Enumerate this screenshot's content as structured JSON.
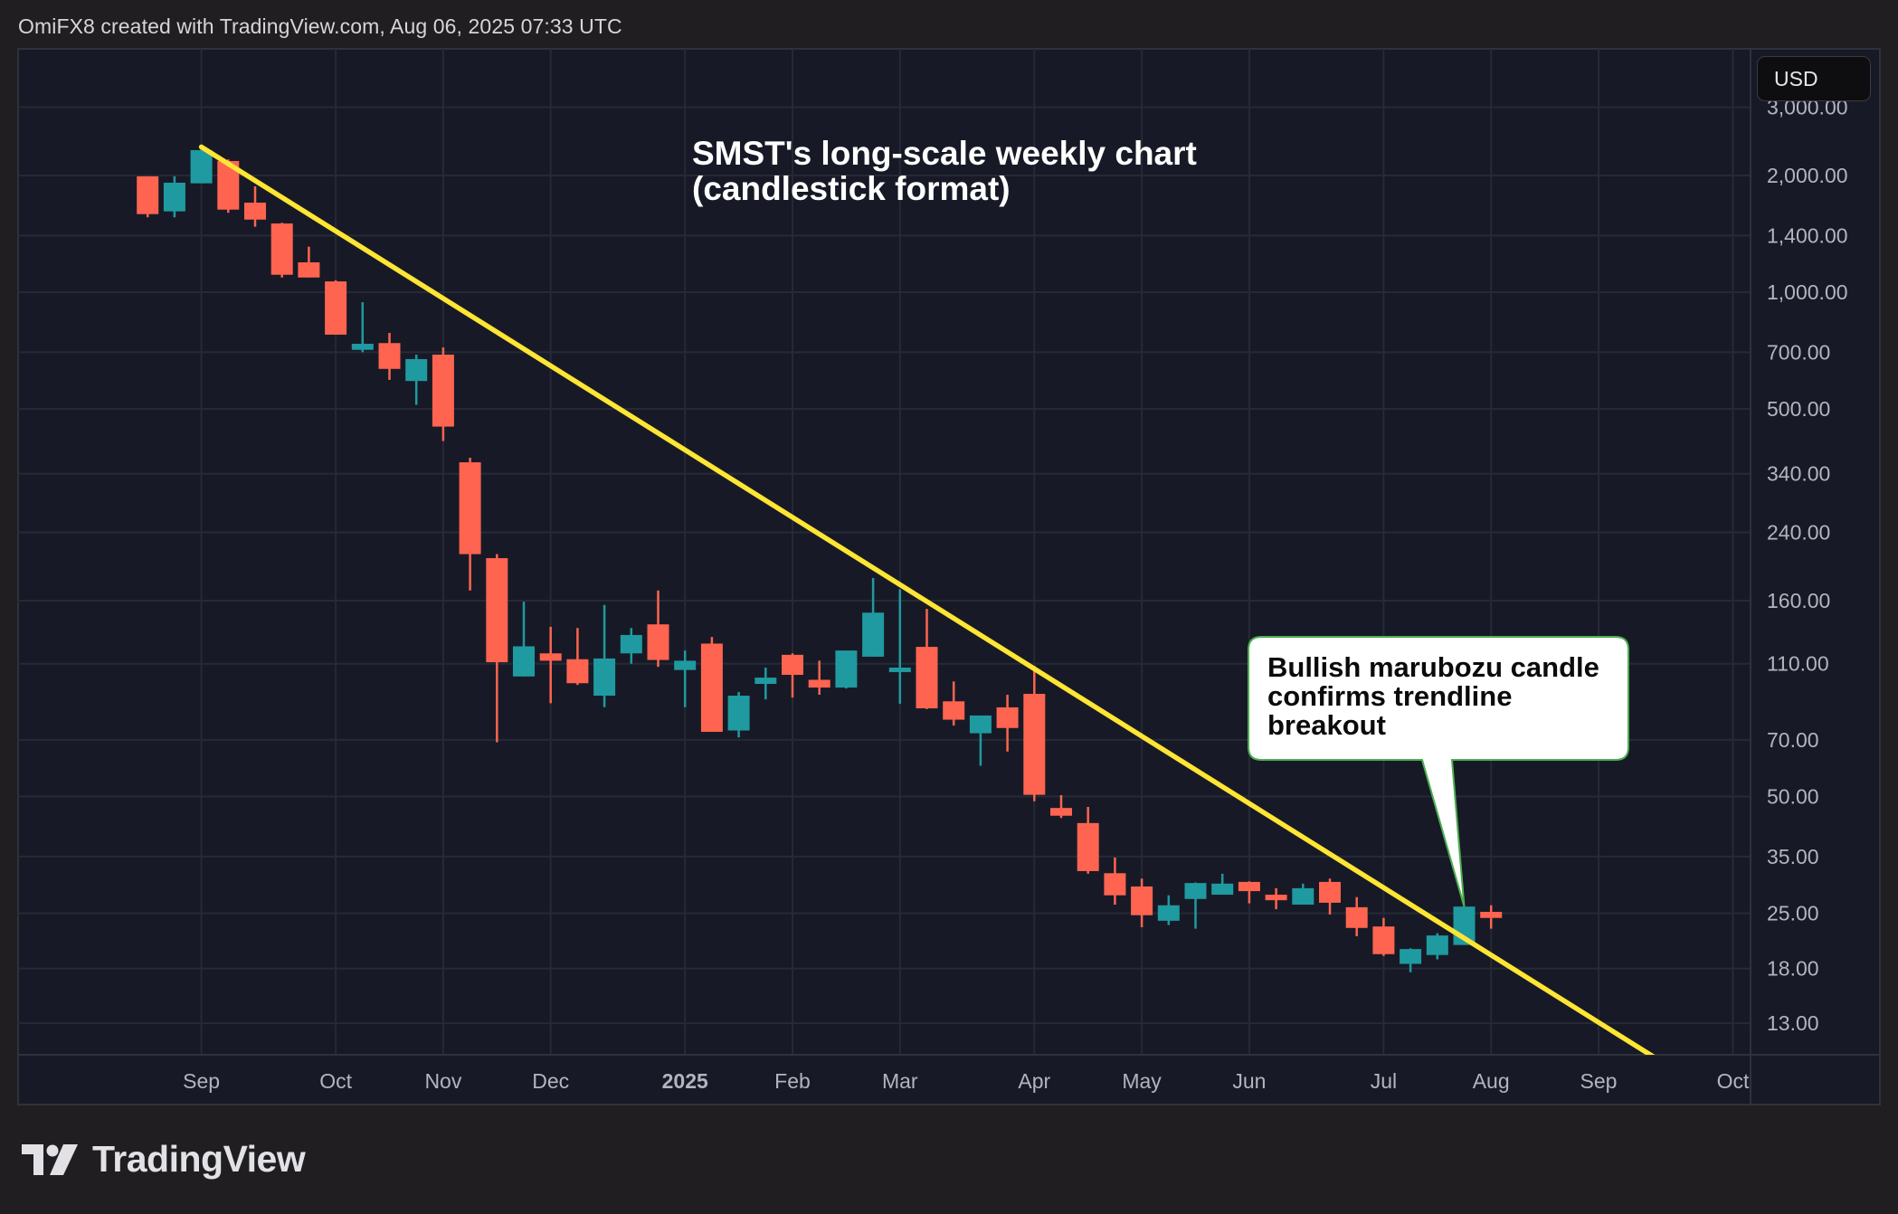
{
  "header": {
    "text": "OmiFX8 created with TradingView.com, Aug 06, 2025 07:33 UTC"
  },
  "currency_button": "USD",
  "logo": {
    "text": "TradingView"
  },
  "annotation": {
    "lines": [
      "Bullish marubozu candle",
      "confirms trendline",
      "breakout"
    ]
  },
  "colors": {
    "up": "#1f9aa0",
    "down": "#fe6450",
    "trendline": "#ffe534",
    "background": "#171a26",
    "grid": "#262a36",
    "callout_border": "#4caf50"
  },
  "chart_data": {
    "type": "candlestick",
    "title": [
      "SMST's long-scale weekly chart",
      "(candlestick format)"
    ],
    "interval": "weekly",
    "y_scale": "log",
    "ylim": [
      10.7,
      3400
    ],
    "grid": true,
    "y_ticks": [
      "3,000.00",
      "2,000.00",
      "1,400.00",
      "1,000.00",
      "700.00",
      "500.00",
      "340.00",
      "240.00",
      "160.00",
      "110.00",
      "70.00",
      "50.00",
      "35.00",
      "25.00",
      "18.00",
      "13.00"
    ],
    "y_tick_values": [
      3000,
      2000,
      1400,
      1000,
      700,
      500,
      340,
      240,
      160,
      110,
      70,
      50,
      35,
      25,
      18,
      13
    ],
    "x_ticks": [
      {
        "label": "Sep",
        "date": "2024-09-02"
      },
      {
        "label": "Oct",
        "date": "2024-10-07"
      },
      {
        "label": "Nov",
        "date": "2024-11-04"
      },
      {
        "label": "Dec",
        "date": "2024-12-02"
      },
      {
        "label": "2025",
        "date": "2025-01-06",
        "bold": true
      },
      {
        "label": "Feb",
        "date": "2025-02-03"
      },
      {
        "label": "Mar",
        "date": "2025-03-03"
      },
      {
        "label": "Apr",
        "date": "2025-04-07"
      },
      {
        "label": "May",
        "date": "2025-05-05"
      },
      {
        "label": "Jun",
        "date": "2025-06-02"
      },
      {
        "label": "Jul",
        "date": "2025-07-07"
      },
      {
        "label": "Aug",
        "date": "2025-08-04"
      },
      {
        "label": "Sep",
        "date": "2025-09-01"
      },
      {
        "label": "Oct",
        "date": "2025-10-06"
      }
    ],
    "columns": [
      "date",
      "open",
      "high",
      "low",
      "close"
    ],
    "candles": [
      [
        "2024-08-19",
        1990,
        1990,
        1560,
        1590
      ],
      [
        "2024-08-26",
        1616,
        1990,
        1560,
        1916
      ],
      [
        "2024-09-02",
        1909,
        2370,
        1909,
        2325
      ],
      [
        "2024-09-09",
        2180,
        2200,
        1603,
        1633
      ],
      [
        "2024-09-16",
        1702,
        1875,
        1475,
        1539
      ],
      [
        "2024-09-23",
        1504,
        1510,
        1091,
        1109
      ],
      [
        "2024-09-30",
        1194,
        1310,
        1091,
        1091
      ],
      [
        "2024-10-07",
        1066,
        1073,
        777,
        777
      ],
      [
        "2024-10-14",
        710,
        942,
        700,
        736
      ],
      [
        "2024-10-21",
        739,
        785,
        594,
        634
      ],
      [
        "2024-10-28",
        590,
        690,
        512,
        672
      ],
      [
        "2024-11-04",
        690,
        720,
        413,
        450
      ],
      [
        "2024-11-11",
        364,
        374,
        170,
        211
      ],
      [
        "2024-11-18",
        206,
        211,
        69,
        111
      ],
      [
        "2024-11-25",
        102,
        159,
        102,
        122
      ],
      [
        "2024-12-02",
        117,
        137,
        87,
        112
      ],
      [
        "2024-12-09",
        113,
        136,
        97,
        98
      ],
      [
        "2024-12-16",
        91,
        156,
        85,
        113.5
      ],
      [
        "2024-12-23",
        117,
        136,
        110,
        130.5
      ],
      [
        "2024-12-30",
        139,
        170,
        108,
        112.5
      ],
      [
        "2025-01-06",
        106,
        119,
        85,
        112
      ],
      [
        "2025-01-13",
        124,
        129,
        73.4,
        73.4
      ],
      [
        "2025-01-20",
        74,
        93,
        71,
        91
      ],
      [
        "2025-01-27",
        97.6,
        107.5,
        89,
        101.3
      ],
      [
        "2025-02-03",
        116,
        117,
        90,
        103
      ],
      [
        "2025-02-10",
        100,
        112,
        91.5,
        95.5
      ],
      [
        "2025-02-17",
        95.5,
        119,
        95,
        119
      ],
      [
        "2025-02-24",
        114.7,
        183,
        114.7,
        149
      ],
      [
        "2025-03-03",
        104.7,
        171,
        86.7,
        107.5
      ],
      [
        "2025-03-10",
        121.6,
        152.4,
        84,
        84.4
      ],
      [
        "2025-03-17",
        88,
        99,
        76.2,
        78.9
      ],
      [
        "2025-03-24",
        72.8,
        80.9,
        60,
        80.9
      ],
      [
        "2025-03-31",
        84.9,
        91.5,
        65.3,
        75.1
      ],
      [
        "2025-04-07",
        92,
        108.7,
        48.6,
        50.5
      ],
      [
        "2025-04-14",
        46.7,
        50.4,
        44,
        44.6
      ],
      [
        "2025-04-21",
        42.7,
        47,
        31.6,
        32.1
      ],
      [
        "2025-04-28",
        31.7,
        34.8,
        26.3,
        27.8
      ],
      [
        "2025-05-05",
        29.3,
        30.7,
        23,
        24.7
      ],
      [
        "2025-05-12",
        23.9,
        27.8,
        23.3,
        26.2
      ],
      [
        "2025-05-19",
        27.2,
        30,
        22.8,
        29.9
      ],
      [
        "2025-05-26",
        27.9,
        31.6,
        27.9,
        29.8
      ],
      [
        "2025-06-02",
        30.1,
        30.2,
        26.5,
        28.5
      ],
      [
        "2025-06-09",
        27.9,
        29,
        25.6,
        27
      ],
      [
        "2025-06-16",
        26.3,
        29.8,
        26.3,
        29
      ],
      [
        "2025-06-23",
        30.1,
        30.7,
        24.8,
        26.6
      ],
      [
        "2025-06-30",
        25.9,
        27.5,
        21.8,
        22.9
      ],
      [
        "2025-07-07",
        23.1,
        24.3,
        19.4,
        19.6
      ],
      [
        "2025-07-14",
        18.5,
        20.3,
        17.6,
        20.2
      ],
      [
        "2025-07-21",
        19.5,
        22.2,
        19,
        21.9
      ],
      [
        "2025-07-28",
        20.7,
        26,
        20.7,
        26
      ],
      [
        "2025-08-04",
        25.2,
        26.2,
        22.8,
        24.3
      ]
    ],
    "trendline": [
      [
        "2024-09-02",
        2370
      ],
      [
        "2025-09-15",
        10.7
      ]
    ],
    "annotation_target": [
      "2025-07-28",
      26
    ]
  }
}
